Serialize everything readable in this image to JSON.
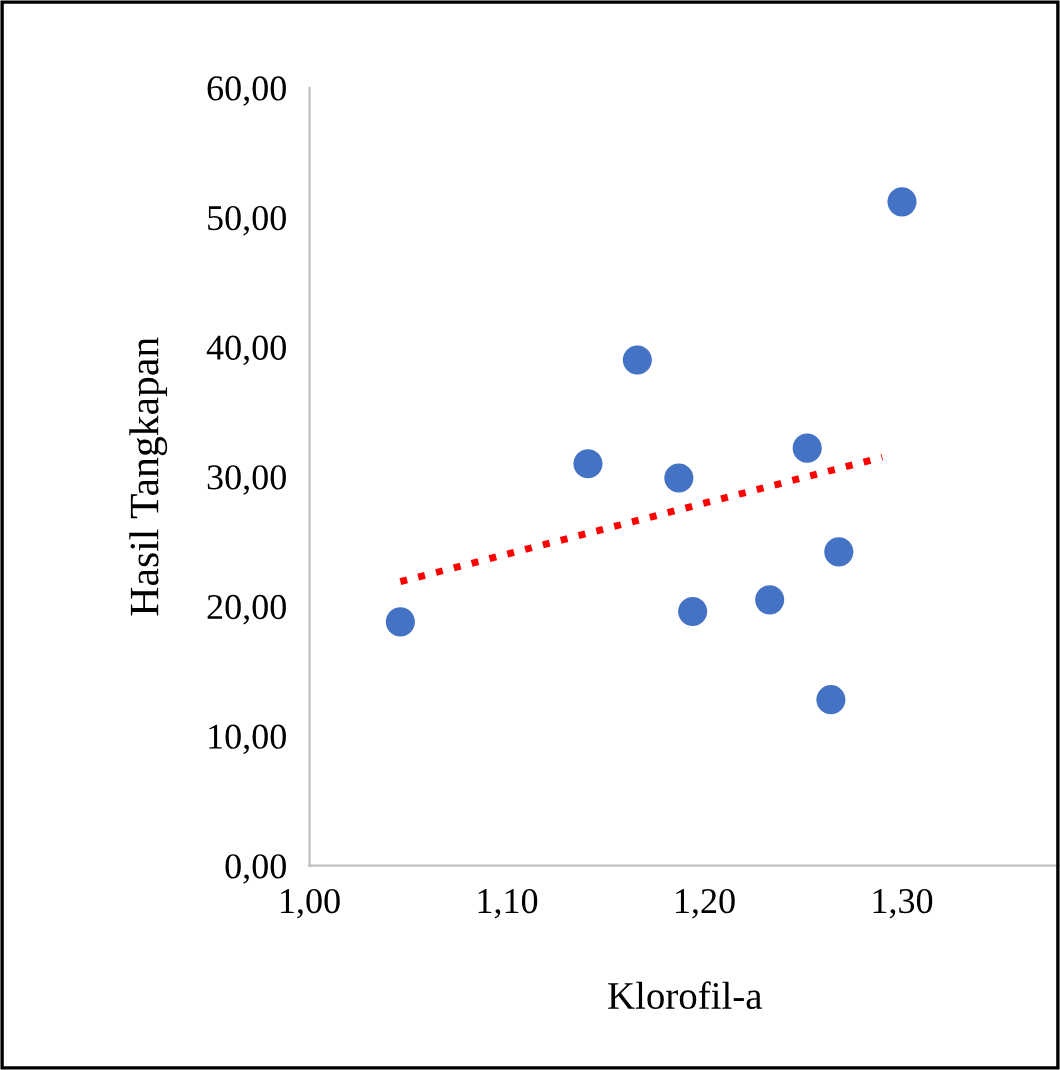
{
  "chart_data": {
    "type": "scatter",
    "xlabel": "Klorofil-a",
    "ylabel": "Hasil Tangkapan",
    "xlim": [
      1.0,
      1.38
    ],
    "ylim": [
      0,
      60
    ],
    "xticks": [
      {
        "value": 1.0,
        "label": "1,00"
      },
      {
        "value": 1.1,
        "label": "1,10"
      },
      {
        "value": 1.2,
        "label": "1,20"
      },
      {
        "value": 1.3,
        "label": "1,30"
      }
    ],
    "yticks": [
      {
        "value": 0,
        "label": "0,00"
      },
      {
        "value": 10,
        "label": "10,00"
      },
      {
        "value": 20,
        "label": "20,00"
      },
      {
        "value": 30,
        "label": "30,00"
      },
      {
        "value": 40,
        "label": "40,00"
      },
      {
        "value": 50,
        "label": "50,00"
      },
      {
        "value": 60,
        "label": "60,00"
      }
    ],
    "grid": false,
    "legend": false,
    "marker": "circle",
    "series": [
      {
        "color": "#4472c4",
        "x": [
          1.046,
          1.141,
          1.166,
          1.187,
          1.194,
          1.233,
          1.252,
          1.264,
          1.268,
          1.3
        ],
        "values": [
          18.8,
          31.0,
          39.0,
          29.9,
          19.6,
          20.5,
          32.2,
          12.8,
          24.2,
          51.2
        ]
      },
      {
        "type": "line",
        "color": "#ff0000",
        "line_style": "dotted",
        "marker": "none",
        "x": [
          1.046,
          1.29
        ],
        "values": [
          21.9,
          31.5
        ]
      }
    ]
  }
}
